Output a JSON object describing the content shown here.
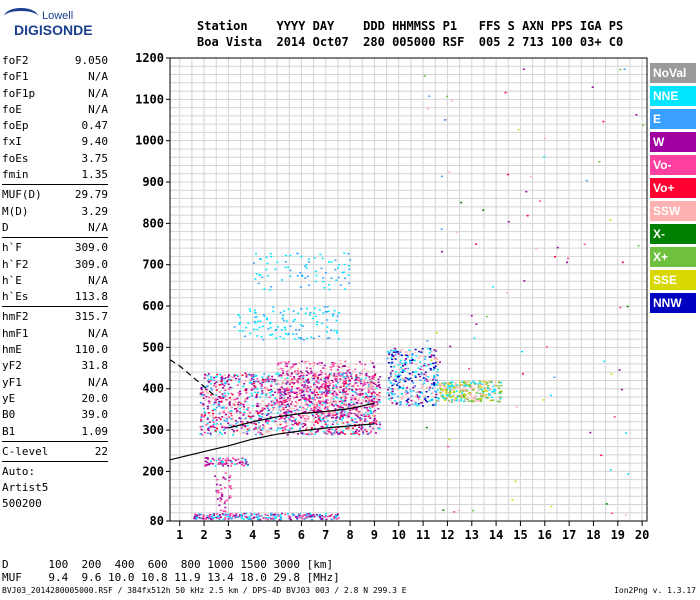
{
  "logo": {
    "line1": "Lowell",
    "line2": "DIGISONDE"
  },
  "header": {
    "line1": "Station    YYYY DAY    DDD HHMMSS P1   FFS S AXN PPS IGA PS",
    "line2": "Boa Vista  2014 Oct07  280 005000 RSF  005 2 713 100 03+ C0"
  },
  "params": [
    {
      "name": "foF2",
      "value": "9.050"
    },
    {
      "name": "foF1",
      "value": "N/A"
    },
    {
      "name": "foF1p",
      "value": "N/A"
    },
    {
      "name": "foE",
      "value": "N/A"
    },
    {
      "name": "foEp",
      "value": "0.47"
    },
    {
      "name": "fxI",
      "value": "9.40"
    },
    {
      "name": "foEs",
      "value": "3.75"
    },
    {
      "name": "fmin",
      "value": "1.35"
    },
    {
      "sep": true
    },
    {
      "name": "MUF(D)",
      "value": "29.79"
    },
    {
      "name": "M(D)",
      "value": "3.29"
    },
    {
      "name": "D",
      "value": "N/A"
    },
    {
      "sep": true
    },
    {
      "name": "h`F",
      "value": "309.0"
    },
    {
      "name": "h`F2",
      "value": "309.0"
    },
    {
      "name": "h`E",
      "value": "N/A"
    },
    {
      "name": "h`Es",
      "value": "113.8"
    },
    {
      "sep": true
    },
    {
      "name": "hmF2",
      "value": "315.7"
    },
    {
      "name": "hmF1",
      "value": "N/A"
    },
    {
      "name": "hmE",
      "value": "110.0"
    },
    {
      "name": "yF2",
      "value": "31.8"
    },
    {
      "name": "yF1",
      "value": "N/A"
    },
    {
      "name": "yE",
      "value": "20.0"
    },
    {
      "name": "B0",
      "value": "39.0"
    },
    {
      "name": "B1",
      "value": "1.09"
    },
    {
      "sep": true
    },
    {
      "name": "C-level",
      "value": "22"
    },
    {
      "sep": true
    }
  ],
  "auto": {
    "line1": "Auto:",
    "line2": "Artist5",
    "line3": "500200"
  },
  "legend": [
    {
      "label": "NoVal",
      "color": "#9a9a9a"
    },
    {
      "label": "NNE",
      "color": "#00e6ff"
    },
    {
      "label": "E",
      "color": "#3aa0ff"
    },
    {
      "label": "W",
      "color": "#a000a0"
    },
    {
      "label": "Vo-",
      "color": "#ff40a0"
    },
    {
      "label": "Vo+",
      "color": "#ff0030"
    },
    {
      "label": "SSW",
      "color": "#ffb0b0"
    },
    {
      "label": "X-",
      "color": "#008000"
    },
    {
      "label": "X+",
      "color": "#70c040"
    },
    {
      "label": "SSE",
      "color": "#d8d800"
    },
    {
      "label": "NNW",
      "color": "#0000c0"
    }
  ],
  "chart_data": {
    "type": "scatter",
    "x_ticks": [
      "1",
      "2",
      "3",
      "4",
      "5",
      "6",
      "7",
      "8",
      "9",
      "10",
      "11",
      "12",
      "13",
      "14",
      "15",
      "16",
      "17",
      "18",
      "19",
      "20"
    ],
    "y_ticks": [
      "80",
      "200",
      "300",
      "400",
      "500",
      "600",
      "700",
      "800",
      "900",
      "1000",
      "1100",
      "1200"
    ],
    "x_range": [
      0.6,
      20.2
    ],
    "y_range": [
      80,
      1200
    ],
    "grid": true,
    "profile_solid": [
      [
        0.6,
        228
      ],
      [
        2,
        248
      ],
      [
        3,
        262
      ],
      [
        4,
        278
      ],
      [
        5,
        290
      ],
      [
        6,
        298
      ],
      [
        7,
        305
      ],
      [
        8,
        310
      ],
      [
        9,
        315
      ]
    ],
    "profile_dashed": [
      [
        0.6,
        470
      ],
      [
        1,
        455
      ],
      [
        1.5,
        430
      ],
      [
        2,
        405
      ],
      [
        2.5,
        380
      ]
    ],
    "trace_black": [
      [
        3,
        305
      ],
      [
        4,
        320
      ],
      [
        5,
        332
      ],
      [
        6,
        340
      ],
      [
        7,
        345
      ],
      [
        8,
        352
      ],
      [
        9,
        365
      ]
    ]
  },
  "bottom": {
    "line1": "D      100  200  400  600  800 1000 1500 3000 [km]",
    "line2": "MUF    9.4  9.6 10.0 10.8 11.9 13.4 18.0 29.8 [MHz]"
  },
  "footer": {
    "left": "BVJ03_2014280005000.RSF / 384fx512h 50 kHz 2.5 km / DPS-4D BVJ03 003 / 2.8 N 299.3 E",
    "right": "Ion2Png v. 1.3.17"
  }
}
